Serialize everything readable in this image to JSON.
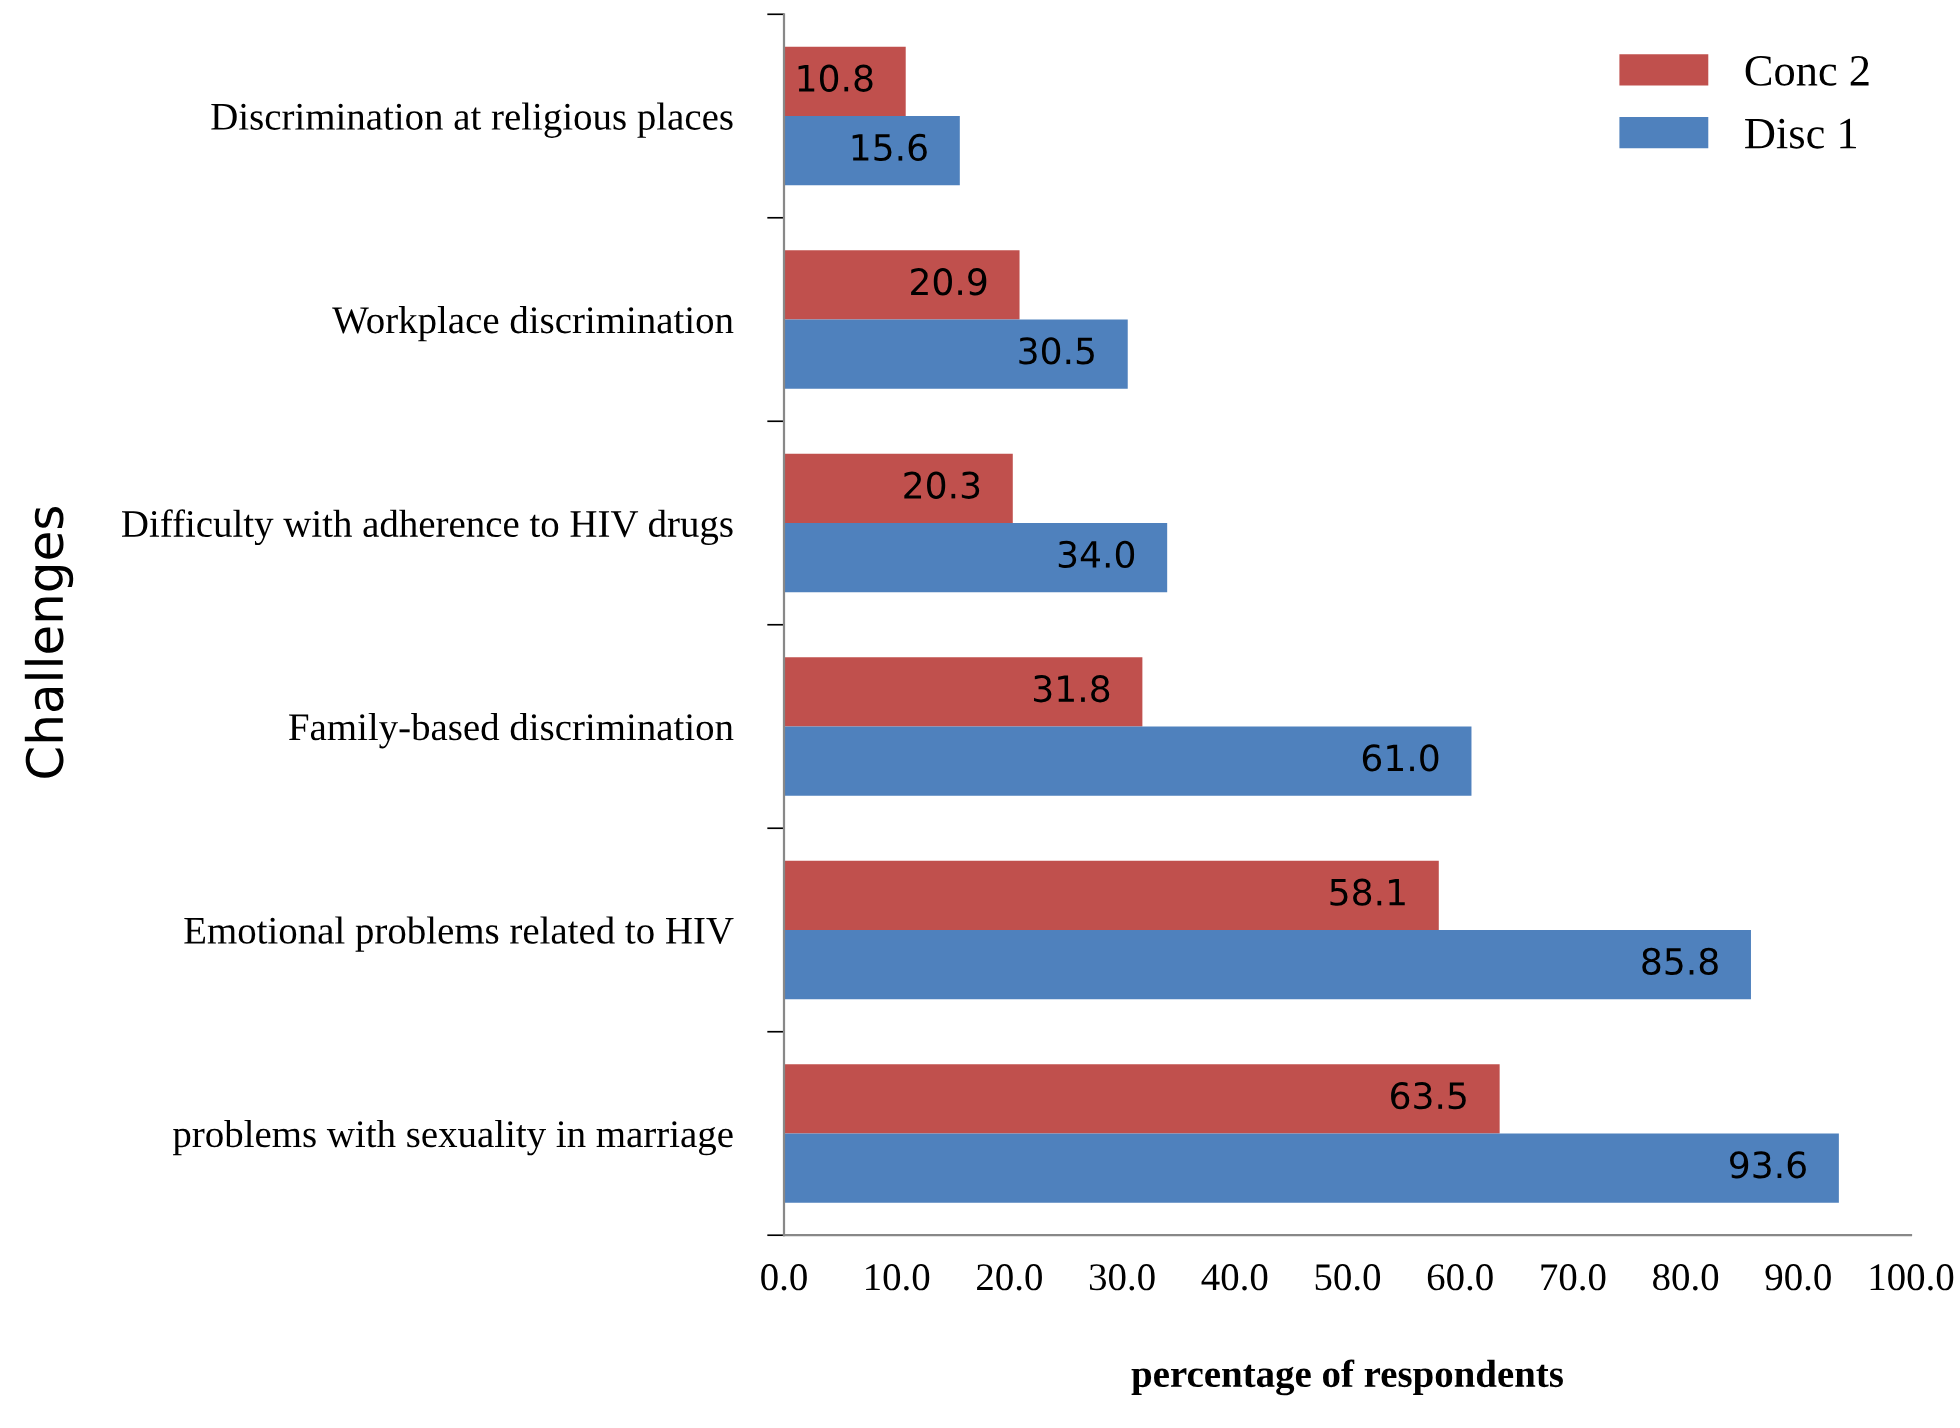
{
  "chart_data": {
    "type": "bar",
    "orientation": "horizontal",
    "xlabel": "percentage of respondents",
    "ylabel": "Challenges",
    "categories": [
      "Discrimination at religious places",
      "Workplace discrimination",
      "Difficulty with adherence to HIV drugs",
      "Family-based discrimination",
      "Emotional problems related to HIV",
      "problems with sexuality in marriage"
    ],
    "series": [
      {
        "name": "Conc 2",
        "color": "#c0504d",
        "values": [
          10.8,
          20.9,
          20.3,
          31.8,
          58.1,
          63.5
        ]
      },
      {
        "name": "Disc 1",
        "color": "#4f81bd",
        "values": [
          15.6,
          30.5,
          34.0,
          61.0,
          85.8,
          93.6
        ]
      }
    ],
    "value_labels": [
      [
        "10.8",
        "20.9",
        "20.3",
        "31.8",
        "58.1",
        "63.5"
      ],
      [
        "15.6",
        "30.5",
        "34.0",
        "61.0",
        "85.8",
        "93.6"
      ]
    ],
    "xlim": [
      0,
      100
    ],
    "xticks": [
      {
        "value": 0,
        "label": "0.0"
      },
      {
        "value": 10,
        "label": "10.0"
      },
      {
        "value": 20,
        "label": "20.0"
      },
      {
        "value": 30,
        "label": "30.0"
      },
      {
        "value": 40,
        "label": "40.0"
      },
      {
        "value": 50,
        "label": "50.0"
      },
      {
        "value": 60,
        "label": "60.0"
      },
      {
        "value": 70,
        "label": "70.0"
      },
      {
        "value": 80,
        "label": "80.0"
      },
      {
        "value": 90,
        "label": "90.0"
      },
      {
        "value": 100,
        "label": "100.0"
      }
    ],
    "grid": false,
    "legend": "top right"
  }
}
